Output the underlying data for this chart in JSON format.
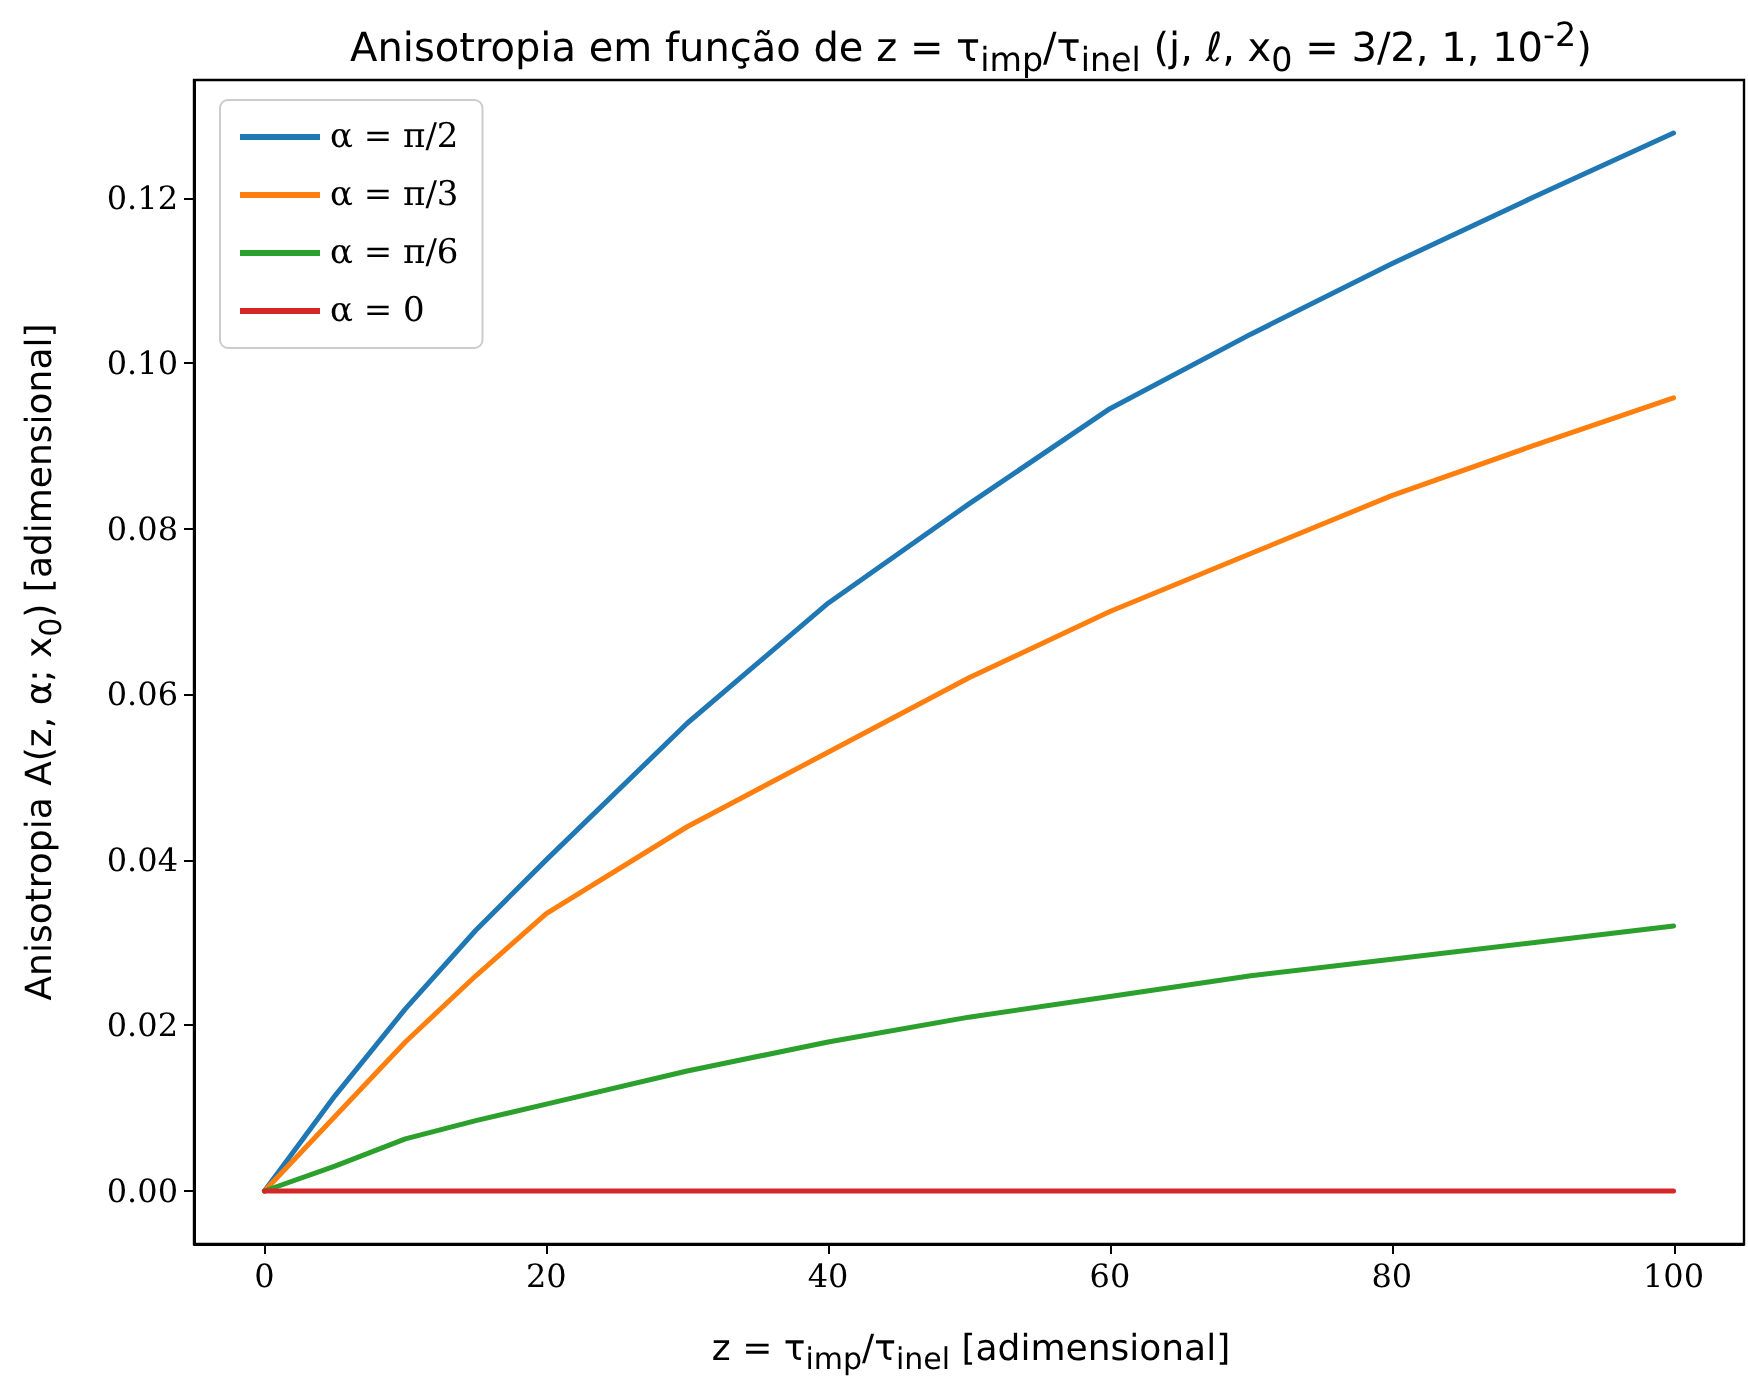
{
  "chart_data": {
    "type": "line",
    "title": "Anisotropia em função de z = τ$_{imp}$/τ$_{inel}$ (j, ℓ, x$_{0}$ = 3/2, 1, 10$^{-2}$)",
    "xlabel": "z = τ$_{imp}$/τ$_{inel}$ [adimensional]",
    "ylabel": "Anisotropia A(z, α; x$_{0}$) [adimensional]",
    "x": [
      0,
      5,
      10,
      15,
      20,
      30,
      40,
      50,
      60,
      70,
      80,
      90,
      100
    ],
    "series": [
      {
        "name": "α = π/2",
        "color": "#1f77b4",
        "values": [
          0,
          0.0115,
          0.022,
          0.0315,
          0.04,
          0.0565,
          0.071,
          0.083,
          0.0945,
          0.1035,
          0.112,
          0.12,
          0.1278
        ]
      },
      {
        "name": "α = π/3",
        "color": "#ff7f0e",
        "values": [
          0,
          0.009,
          0.018,
          0.026,
          0.0335,
          0.044,
          0.053,
          0.062,
          0.07,
          0.077,
          0.084,
          0.09,
          0.0958
        ]
      },
      {
        "name": "α = π/6",
        "color": "#2ca02c",
        "values": [
          0,
          0.003,
          0.0063,
          0.0085,
          0.0105,
          0.0145,
          0.018,
          0.021,
          0.0235,
          0.026,
          0.028,
          0.03,
          0.032
        ]
      },
      {
        "name": "α = 0",
        "color": "#d62728",
        "values": [
          0,
          0,
          0,
          0,
          0,
          0,
          0,
          0,
          0,
          0,
          0,
          0,
          0
        ]
      }
    ],
    "xlim": [
      -5,
      105
    ],
    "xticks": [
      0,
      20,
      40,
      60,
      80,
      100
    ],
    "ylim": [
      -0.0064,
      0.1342
    ],
    "yticks": [
      {
        "value": 0,
        "label": "0.00"
      },
      {
        "value": 0.02,
        "label": "0.02"
      },
      {
        "value": 0.04,
        "label": "0.04"
      },
      {
        "value": 0.06,
        "label": "0.06"
      },
      {
        "value": 0.08,
        "label": "0.08"
      },
      {
        "value": 0.1,
        "label": "0.10"
      },
      {
        "value": 0.12,
        "label": "0.12"
      }
    ],
    "legend": "top left",
    "grid": false,
    "marker": "none",
    "line_style": "solid"
  }
}
